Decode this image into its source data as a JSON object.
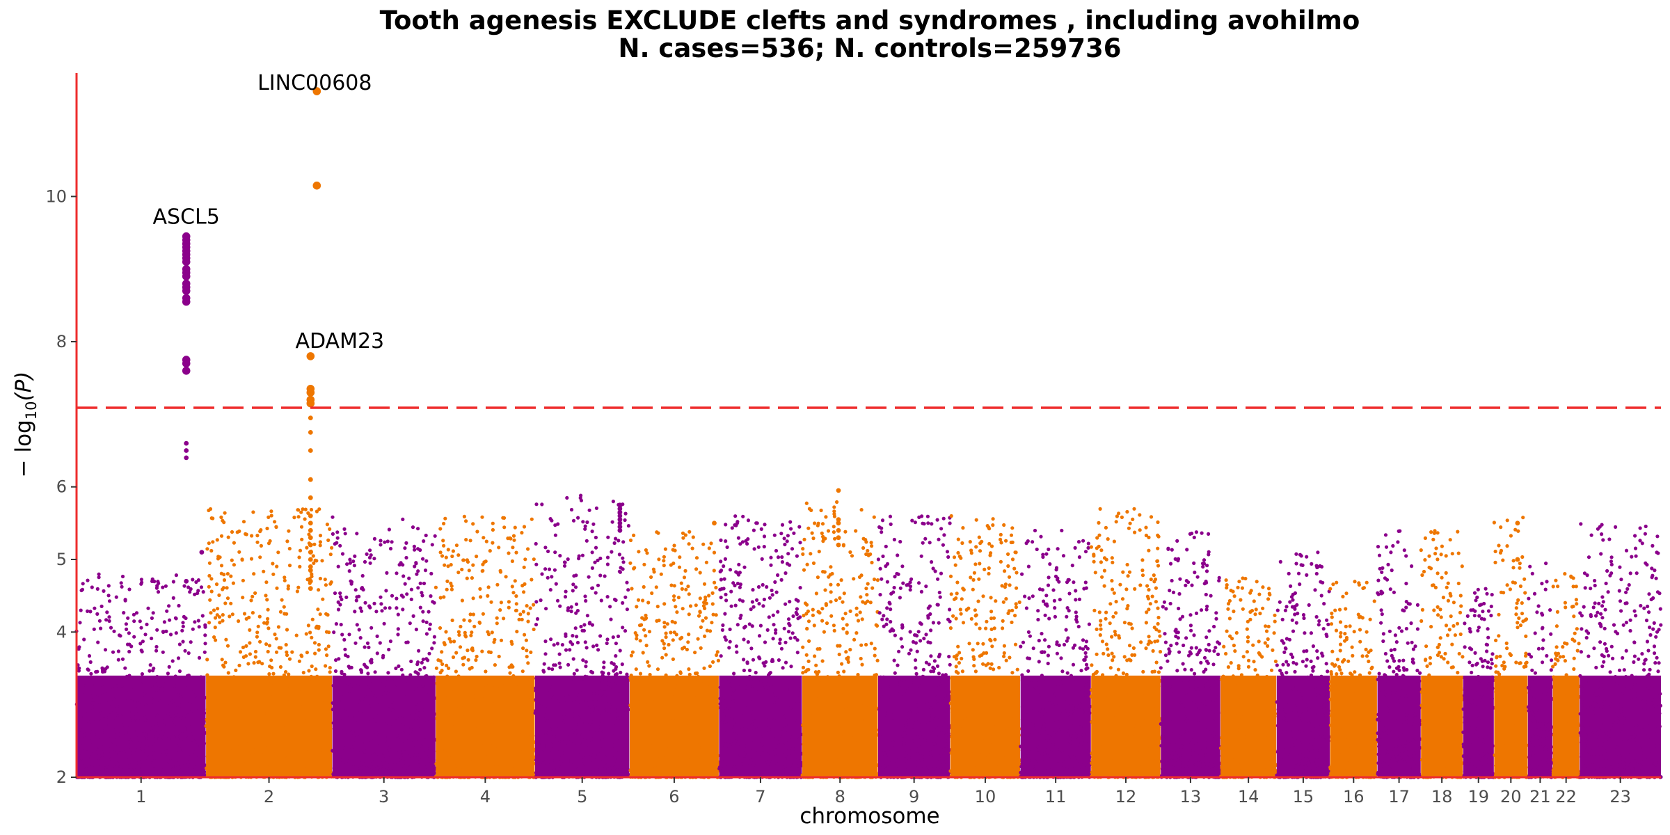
{
  "chart_data": {
    "type": "scatter",
    "subtype": "manhattan",
    "title_line1": "Tooth agenesis EXCLUDE clefts and syndromes , including avohilmo",
    "title_line2": "N. cases=536; N. controls=259736",
    "xlabel": "chromosome",
    "ylabel_prefix": "− log",
    "ylabel_sub": "10",
    "ylabel_suffix": "(P)",
    "ylim": [
      2,
      11.7
    ],
    "yticks": [
      "2",
      "4",
      "5",
      "6",
      "8",
      "10"
    ],
    "significance_threshold": 7.09,
    "grid": false,
    "colors": {
      "odd": "#8B008B",
      "even": "#EE7600",
      "threshold": "#EE2C2C",
      "axis": "#EE2C2C"
    },
    "chromosomes": [
      {
        "label": "1",
        "length": 248,
        "peak": 4.8
      },
      {
        "label": "2",
        "length": 242,
        "peak": 5.7
      },
      {
        "label": "3",
        "length": 198,
        "peak": 5.6
      },
      {
        "label": "4",
        "length": 190,
        "peak": 5.6
      },
      {
        "label": "5",
        "length": 181,
        "peak": 5.9
      },
      {
        "label": "6",
        "length": 171,
        "peak": 5.4
      },
      {
        "label": "7",
        "length": 159,
        "peak": 5.6
      },
      {
        "label": "8",
        "length": 145,
        "peak": 5.8
      },
      {
        "label": "9",
        "length": 138,
        "peak": 5.6
      },
      {
        "label": "10",
        "length": 134,
        "peak": 5.6
      },
      {
        "label": "11",
        "length": 135,
        "peak": 5.4
      },
      {
        "label": "12",
        "length": 133,
        "peak": 5.7
      },
      {
        "label": "13",
        "length": 114,
        "peak": 5.4
      },
      {
        "label": "14",
        "length": 107,
        "peak": 4.8
      },
      {
        "label": "15",
        "length": 102,
        "peak": 5.1
      },
      {
        "label": "16",
        "length": 90,
        "peak": 4.7
      },
      {
        "label": "17",
        "length": 83,
        "peak": 5.5
      },
      {
        "label": "18",
        "length": 80,
        "peak": 5.4
      },
      {
        "label": "19",
        "length": 59,
        "peak": 4.6
      },
      {
        "label": "20",
        "length": 64,
        "peak": 5.6
      },
      {
        "label": "21",
        "length": 47,
        "peak": 5.0
      },
      {
        "label": "22",
        "length": 51,
        "peak": 4.9
      },
      {
        "label": "23",
        "length": 156,
        "peak": 5.5
      }
    ],
    "annotations": [
      {
        "label": "ASCL5",
        "chrom": "1",
        "pos": 0.85,
        "y": 9.45
      },
      {
        "label": "LINC00608",
        "chrom": "2",
        "pos": 0.88,
        "y": 11.45
      },
      {
        "label": "ADAM23",
        "chrom": "2",
        "pos": 0.83,
        "y": 7.8
      }
    ],
    "hits": [
      {
        "chrom": "1",
        "pos": 0.85,
        "values": [
          9.45,
          9.4,
          9.35,
          9.3,
          9.25,
          9.2,
          9.15,
          9.1,
          9.0,
          8.95,
          8.9,
          8.8,
          8.75,
          8.7,
          8.6,
          8.55,
          7.75,
          7.7,
          7.6,
          6.6,
          6.5,
          6.4,
          4.7
        ]
      },
      {
        "chrom": "2",
        "pos": 0.88,
        "values": [
          11.45,
          10.15
        ]
      },
      {
        "chrom": "2",
        "pos": 0.83,
        "values": [
          7.8,
          7.35,
          7.3,
          7.2,
          7.15,
          6.95,
          6.75,
          6.5,
          6.1,
          5.85,
          5.6,
          5.5,
          5.4,
          5.3,
          5.2,
          5.1,
          5.0,
          4.9,
          4.85,
          4.7,
          4.6
        ]
      },
      {
        "chrom": "1",
        "pos": 0.97,
        "values": [
          5.1
        ]
      },
      {
        "chrom": "5",
        "pos": 0.9,
        "values": [
          5.75,
          5.7,
          5.65,
          5.6,
          5.55,
          5.5,
          5.45,
          5.4
        ]
      },
      {
        "chrom": "8",
        "pos": 0.48,
        "values": [
          5.95,
          5.55,
          5.5,
          5.4,
          5.3,
          5.2
        ]
      },
      {
        "chrom": "20",
        "pos": 0.7,
        "values": [
          5.5,
          5.0
        ]
      },
      {
        "chrom": "6",
        "pos": 0.95,
        "values": [
          5.5
        ]
      }
    ]
  }
}
